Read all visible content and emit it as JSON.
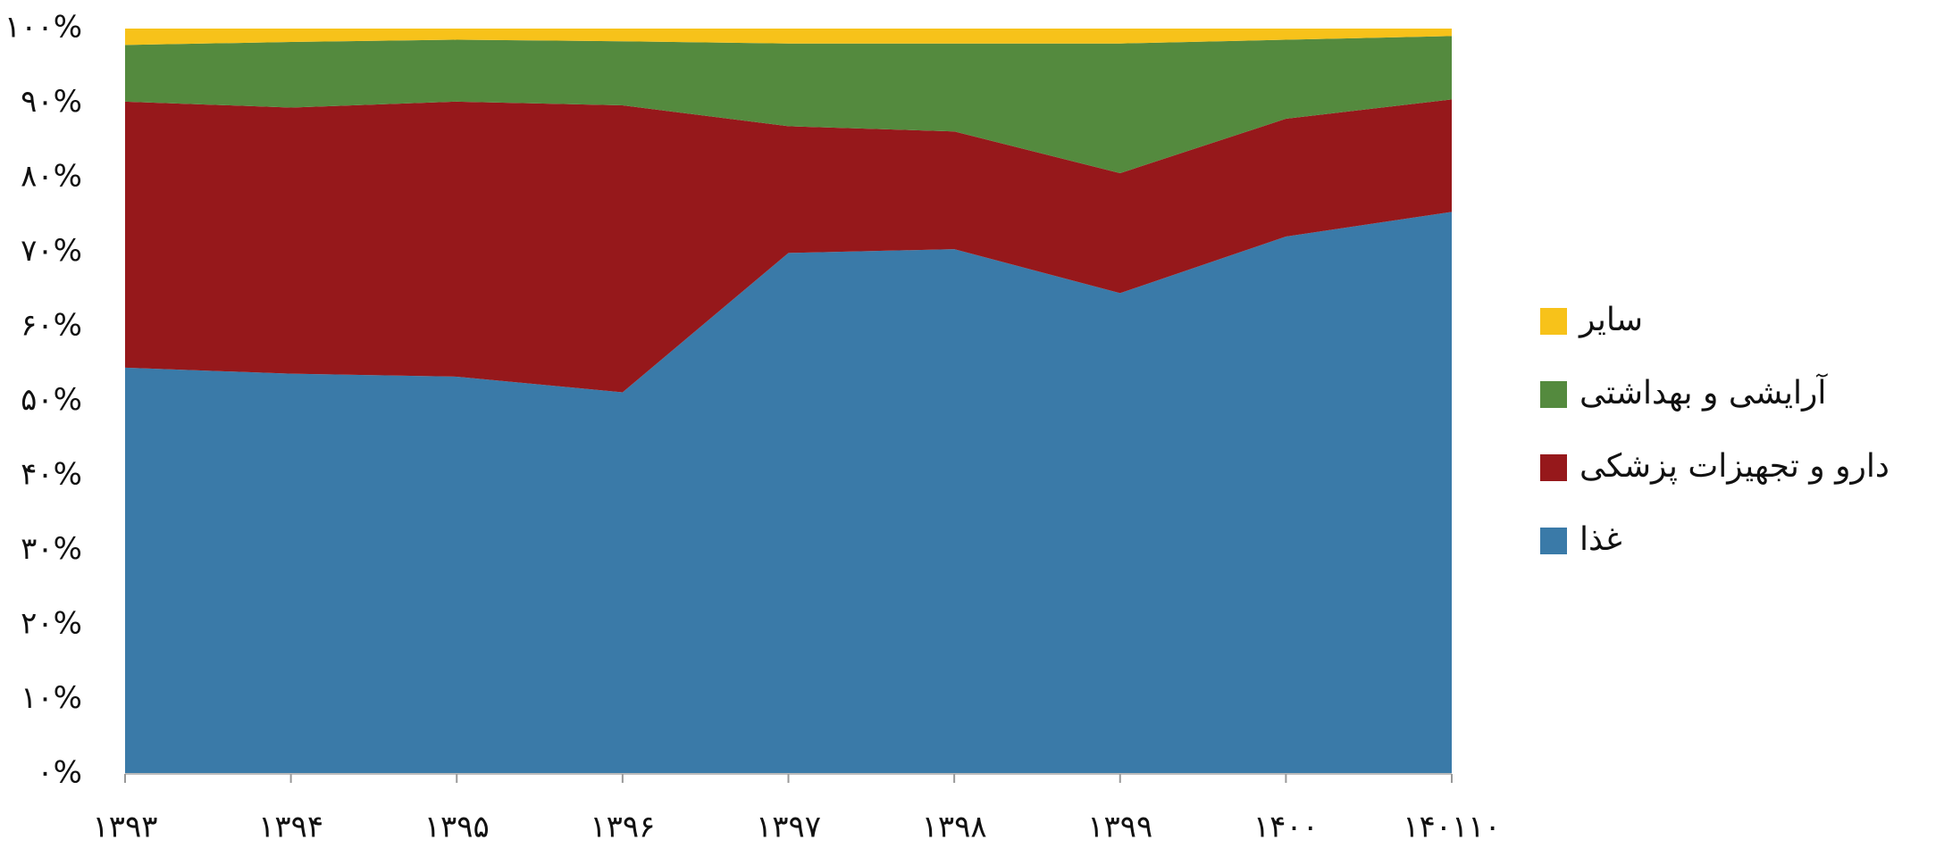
{
  "chart_data": {
    "type": "stacked-area-100",
    "categories": [
      "۱۳۹۳",
      "۱۳۹۴",
      "۱۳۹۵",
      "۱۳۹۶",
      "۱۳۹۷",
      "۱۳۹۸",
      "۱۳۹۹",
      "۱۴۰۰",
      "۱۴۰۱۱۰"
    ],
    "series": [
      {
        "name": "غذا",
        "color": "#3a7aa8",
        "values": [
          54.5,
          53.7,
          53.3,
          51.2,
          69.9,
          70.4,
          64.5,
          72.1,
          75.4
        ]
      },
      {
        "name": "دارو و تجهیزات پزشکی",
        "color": "#96181b",
        "values": [
          35.7,
          35.7,
          36.9,
          38.5,
          17.0,
          15.8,
          16.1,
          15.8,
          15.1
        ]
      },
      {
        "name": "آرایشی و بهداشتی",
        "color": "#548a3e",
        "values": [
          7.6,
          8.8,
          8.3,
          8.6,
          11.1,
          11.8,
          17.4,
          10.6,
          8.5
        ]
      },
      {
        "name": "ساير",
        "color": "#f7c21a",
        "values": [
          2.2,
          1.8,
          1.5,
          1.7,
          2.0,
          2.0,
          2.0,
          1.5,
          1.0
        ]
      }
    ],
    "ylim": [
      0,
      100
    ],
    "yticks": [
      {
        "value": 0,
        "label": "۰%"
      },
      {
        "value": 10,
        "label": "۱۰%"
      },
      {
        "value": 20,
        "label": "۲۰%"
      },
      {
        "value": 30,
        "label": "۳۰%"
      },
      {
        "value": 40,
        "label": "۴۰%"
      },
      {
        "value": 50,
        "label": "۵۰%"
      },
      {
        "value": 60,
        "label": "۶۰%"
      },
      {
        "value": 70,
        "label": "۷۰%"
      },
      {
        "value": 80,
        "label": "۸۰%"
      },
      {
        "value": 90,
        "label": "۹۰%"
      },
      {
        "value": 100,
        "label": "۱۰۰%"
      }
    ],
    "legend": "right"
  }
}
